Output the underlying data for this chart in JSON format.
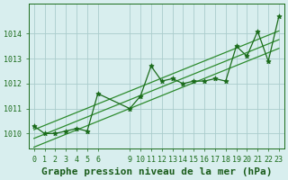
{
  "title": "Graphe pression niveau de la mer (hPa)",
  "x_ticks": [
    0,
    1,
    2,
    3,
    4,
    5,
    6,
    9,
    10,
    11,
    12,
    13,
    14,
    15,
    16,
    17,
    18,
    19,
    20,
    21,
    22,
    23
  ],
  "hours": [
    0,
    1,
    2,
    3,
    4,
    5,
    6,
    9,
    10,
    11,
    12,
    13,
    14,
    15,
    16,
    17,
    18,
    19,
    20,
    21,
    22,
    23
  ],
  "pressure": [
    1010.3,
    1010.0,
    1010.0,
    1010.1,
    1010.2,
    1010.1,
    1011.6,
    1011.0,
    1011.5,
    1012.7,
    1012.1,
    1012.2,
    1012.0,
    1012.1,
    1012.1,
    1012.2,
    1012.1,
    1013.5,
    1013.1,
    1014.1,
    1012.9,
    1014.7
  ],
  "ylim_min": 1009.4,
  "ylim_max": 1015.2,
  "bg_color": "#d8eeee",
  "grid_color": "#aacccc",
  "line_color": "#1a6b1a",
  "marker_color": "#1a6b1a",
  "trend_color": "#2d8b2d",
  "title_color": "#1a5c1a",
  "title_fontsize": 8.0,
  "tick_fontsize": 6.0,
  "tick_color": "#1a6b1a",
  "yticks": [
    1010,
    1011,
    1012,
    1013,
    1014
  ]
}
